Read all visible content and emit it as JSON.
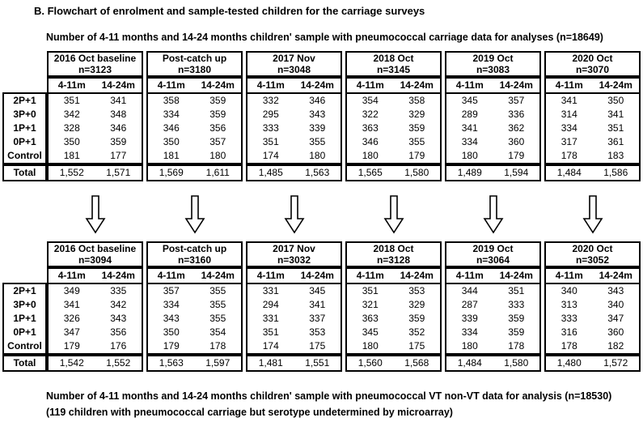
{
  "title": "B. Flowchart of enrolment and sample-tested children for the carriage surveys",
  "common": {
    "row_labels": [
      "2P+1",
      "3P+0",
      "1P+1",
      "0P+1",
      "Control"
    ],
    "total_label": "Total",
    "col_headers": [
      "4-11m",
      "14-24m"
    ],
    "border_color": "#000000",
    "background_color": "#ffffff",
    "arrow_icon": "down-arrow"
  },
  "top_section": {
    "heading": "Number of 4-11 months and 14-24 months children' sample with pneumococcal carriage data for analyses (n=18649)",
    "tables": [
      {
        "title": "2016 Oct baseline",
        "n": "n=3123",
        "rows": [
          [
            "351",
            "341"
          ],
          [
            "342",
            "348"
          ],
          [
            "328",
            "346"
          ],
          [
            "350",
            "359"
          ],
          [
            "181",
            "177"
          ]
        ],
        "total": [
          "1,552",
          "1,571"
        ]
      },
      {
        "title": "Post-catch up",
        "n": "n=3180",
        "rows": [
          [
            "358",
            "359"
          ],
          [
            "334",
            "359"
          ],
          [
            "346",
            "356"
          ],
          [
            "350",
            "357"
          ],
          [
            "181",
            "180"
          ]
        ],
        "total": [
          "1,569",
          "1,611"
        ]
      },
      {
        "title": "2017 Nov",
        "n": "n=3048",
        "rows": [
          [
            "332",
            "346"
          ],
          [
            "295",
            "343"
          ],
          [
            "333",
            "339"
          ],
          [
            "351",
            "355"
          ],
          [
            "174",
            "180"
          ]
        ],
        "total": [
          "1,485",
          "1,563"
        ]
      },
      {
        "title": "2018 Oct",
        "n": "n=3145",
        "rows": [
          [
            "354",
            "358"
          ],
          [
            "322",
            "329"
          ],
          [
            "363",
            "359"
          ],
          [
            "346",
            "355"
          ],
          [
            "180",
            "179"
          ]
        ],
        "total": [
          "1,565",
          "1,580"
        ]
      },
      {
        "title": "2019 Oct",
        "n": "n=3083",
        "rows": [
          [
            "345",
            "357"
          ],
          [
            "289",
            "336"
          ],
          [
            "341",
            "362"
          ],
          [
            "334",
            "360"
          ],
          [
            "180",
            "179"
          ]
        ],
        "total": [
          "1,489",
          "1,594"
        ]
      },
      {
        "title": "2020 Oct",
        "n": "n=3070",
        "rows": [
          [
            "341",
            "350"
          ],
          [
            "314",
            "341"
          ],
          [
            "334",
            "351"
          ],
          [
            "317",
            "361"
          ],
          [
            "178",
            "183"
          ]
        ],
        "total": [
          "1,484",
          "1,586"
        ]
      }
    ]
  },
  "bottom_section": {
    "tables": [
      {
        "title": "2016 Oct baseline",
        "n": "n=3094",
        "rows": [
          [
            "349",
            "335"
          ],
          [
            "341",
            "342"
          ],
          [
            "326",
            "343"
          ],
          [
            "347",
            "356"
          ],
          [
            "179",
            "176"
          ]
        ],
        "total": [
          "1,542",
          "1,552"
        ]
      },
      {
        "title": "Post-catch up",
        "n": "n=3160",
        "rows": [
          [
            "357",
            "355"
          ],
          [
            "334",
            "355"
          ],
          [
            "343",
            "355"
          ],
          [
            "350",
            "354"
          ],
          [
            "179",
            "178"
          ]
        ],
        "total": [
          "1,563",
          "1,597"
        ]
      },
      {
        "title": "2017 Nov",
        "n": "n=3032",
        "rows": [
          [
            "331",
            "345"
          ],
          [
            "294",
            "341"
          ],
          [
            "331",
            "337"
          ],
          [
            "351",
            "353"
          ],
          [
            "174",
            "175"
          ]
        ],
        "total": [
          "1,481",
          "1,551"
        ]
      },
      {
        "title": "2018 Oct",
        "n": "n=3128",
        "rows": [
          [
            "351",
            "353"
          ],
          [
            "321",
            "329"
          ],
          [
            "363",
            "359"
          ],
          [
            "345",
            "352"
          ],
          [
            "180",
            "175"
          ]
        ],
        "total": [
          "1,560",
          "1,568"
        ]
      },
      {
        "title": "2019 Oct",
        "n": "n=3064",
        "rows": [
          [
            "344",
            "351"
          ],
          [
            "287",
            "333"
          ],
          [
            "339",
            "359"
          ],
          [
            "334",
            "359"
          ],
          [
            "180",
            "178"
          ]
        ],
        "total": [
          "1,484",
          "1,580"
        ]
      },
      {
        "title": "2020 Oct",
        "n": "n=3052",
        "rows": [
          [
            "340",
            "343"
          ],
          [
            "313",
            "340"
          ],
          [
            "333",
            "347"
          ],
          [
            "316",
            "360"
          ],
          [
            "178",
            "182"
          ]
        ],
        "total": [
          "1,480",
          "1,572"
        ]
      }
    ]
  },
  "footer": {
    "line1": "Number of 4-11 months and 14-24 months children' sample with pneumococcal VT non-VT data for analysis (n=18530)",
    "line2": "(119 children with pneumococcal carriage but serotype undetermined by microarray)"
  }
}
